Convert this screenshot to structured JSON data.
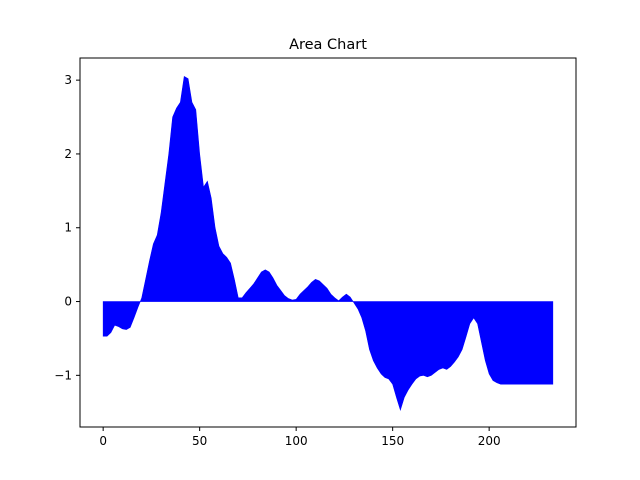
{
  "chart_data": {
    "type": "area",
    "title": "Area Chart",
    "xlabel": "",
    "ylabel": "",
    "xlim": [
      -12,
      245
    ],
    "ylim": [
      -1.7,
      3.3
    ],
    "xticks": [
      0,
      50,
      100,
      150,
      200
    ],
    "yticks": [
      -1,
      0,
      1,
      2,
      3
    ],
    "grid": false,
    "fill_color": "#0000ff",
    "baseline": 0,
    "x": [
      0,
      2,
      4,
      6,
      8,
      10,
      12,
      14,
      16,
      18,
      20,
      22,
      24,
      26,
      28,
      30,
      32,
      34,
      36,
      38,
      40,
      42,
      44,
      46,
      48,
      50,
      52,
      54,
      56,
      58,
      60,
      62,
      64,
      66,
      68,
      70,
      72,
      74,
      76,
      78,
      80,
      82,
      84,
      86,
      88,
      90,
      92,
      94,
      96,
      98,
      100,
      102,
      104,
      106,
      108,
      110,
      112,
      114,
      116,
      118,
      120,
      122,
      124,
      126,
      128,
      130,
      132,
      134,
      136,
      138,
      140,
      142,
      144,
      146,
      148,
      150,
      152,
      154,
      156,
      158,
      160,
      162,
      164,
      166,
      168,
      170,
      172,
      174,
      176,
      178,
      180,
      182,
      184,
      186,
      188,
      190,
      192,
      194,
      196,
      198,
      200,
      202,
      204,
      206,
      208,
      210,
      212,
      214,
      216,
      218,
      220,
      222,
      224,
      226,
      228,
      230,
      232,
      233
    ],
    "y": [
      -0.47,
      -0.47,
      -0.42,
      -0.32,
      -0.34,
      -0.37,
      -0.38,
      -0.35,
      -0.22,
      -0.08,
      0.05,
      0.3,
      0.55,
      0.78,
      0.9,
      1.2,
      1.6,
      2.0,
      2.5,
      2.62,
      2.7,
      3.05,
      3.02,
      2.7,
      2.6,
      2.0,
      1.55,
      1.63,
      1.4,
      1.0,
      0.75,
      0.65,
      0.6,
      0.52,
      0.3,
      0.05,
      0.05,
      0.12,
      0.18,
      0.24,
      0.32,
      0.4,
      0.43,
      0.4,
      0.32,
      0.22,
      0.15,
      0.08,
      0.04,
      0.02,
      0.03,
      0.1,
      0.15,
      0.2,
      0.26,
      0.3,
      0.28,
      0.23,
      0.18,
      0.1,
      0.05,
      0.01,
      0.06,
      0.1,
      0.06,
      -0.02,
      -0.1,
      -0.22,
      -0.4,
      -0.65,
      -0.8,
      -0.9,
      -0.98,
      -1.03,
      -1.05,
      -1.12,
      -1.3,
      -1.47,
      -1.3,
      -1.2,
      -1.12,
      -1.05,
      -1.01,
      -1.0,
      -1.02,
      -1.0,
      -0.96,
      -0.92,
      -0.9,
      -0.92,
      -0.88,
      -0.82,
      -0.75,
      -0.65,
      -0.48,
      -0.3,
      -0.22,
      -0.3,
      -0.55,
      -0.8,
      -0.98,
      -1.07,
      -1.1,
      -1.12,
      -1.12,
      -1.12,
      -1.12,
      -1.12,
      -1.12,
      -1.12,
      -1.12,
      -1.12,
      -1.12,
      -1.12,
      -1.12,
      -1.12,
      -1.12,
      -1.12
    ]
  }
}
